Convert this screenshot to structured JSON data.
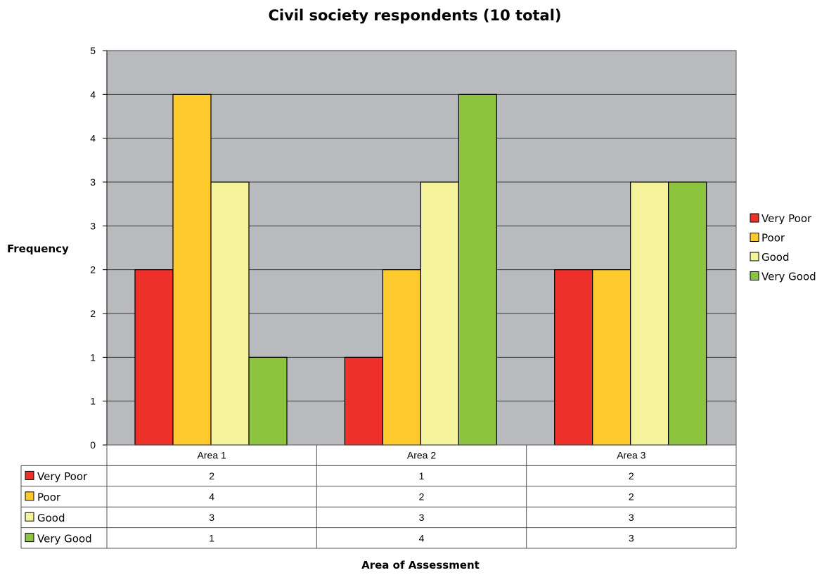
{
  "chart_data": {
    "type": "bar",
    "title": "Civil society respondents (10 total)",
    "xlabel": "Area of Assessment",
    "ylabel": "Frequency",
    "ylim": [
      0,
      4.5
    ],
    "y_tick_labels": [
      "0",
      "1",
      "1",
      "2",
      "2",
      "3",
      "3",
      "4",
      "4",
      "5"
    ],
    "grid": true,
    "legend_position": "right",
    "categories": [
      "Area 1",
      "Area 2",
      "Area 3"
    ],
    "series": [
      {
        "name": "Very Poor",
        "color": "#ee302b",
        "values": [
          2,
          1,
          2
        ],
        "value_labels": [
          "2",
          "1",
          "2"
        ]
      },
      {
        "name": "Poor",
        "color": "#fec92d",
        "values": [
          4,
          2,
          2
        ],
        "value_labels": [
          "4",
          "2",
          "2"
        ]
      },
      {
        "name": "Good",
        "color": "#f4f29a",
        "values": [
          3,
          3,
          3
        ],
        "value_labels": [
          "3",
          "3",
          "3"
        ]
      },
      {
        "name": "Very Good",
        "color": "#8cc43f",
        "values": [
          1,
          4,
          3
        ],
        "value_labels": [
          "1",
          "4",
          "3"
        ]
      }
    ],
    "data_table": true,
    "plot_background": "#b9babe"
  }
}
